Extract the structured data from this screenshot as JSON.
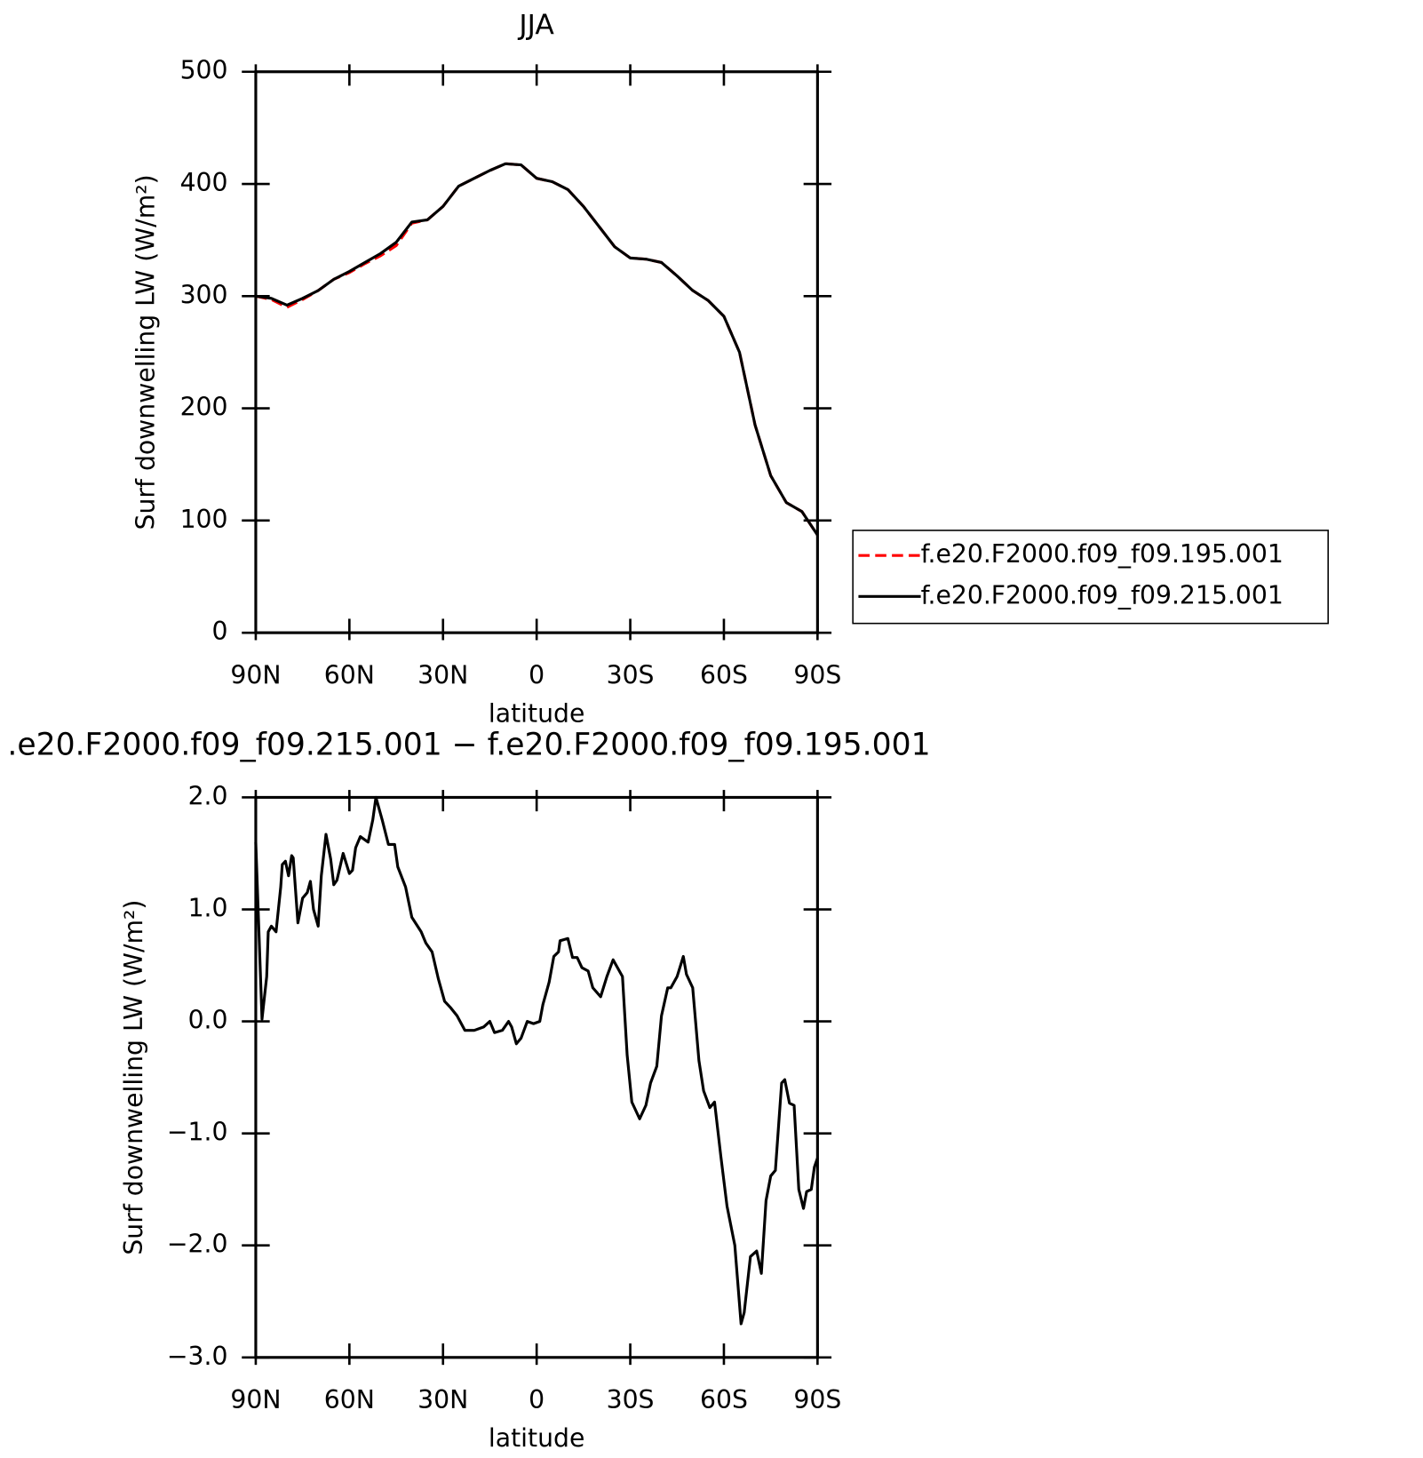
{
  "chart_data": [
    {
      "type": "line",
      "title": "JJA",
      "xlabel": "latitude",
      "ylabel": "Surf downwelling LW (W/m²)",
      "x": [
        90,
        85,
        80,
        75,
        70,
        65,
        60,
        55,
        50,
        45,
        40,
        35,
        30,
        25,
        20,
        15,
        10,
        5,
        0,
        -5,
        -10,
        -15,
        -20,
        -25,
        -30,
        -35,
        -40,
        -45,
        -50,
        -55,
        -60,
        -65,
        -70,
        -75,
        -80,
        -85,
        -90
      ],
      "series": [
        {
          "name": "f.e20.F2000.f09_f09.195.001",
          "color": "#ff0000",
          "line_style": "dashed",
          "values": [
            300,
            297,
            290,
            297,
            305,
            315,
            321,
            329,
            336,
            345,
            365,
            368,
            380,
            398,
            405,
            412,
            418,
            417,
            405,
            402,
            395,
            380,
            362,
            344,
            334,
            333,
            330,
            318,
            305,
            296,
            282,
            250,
            185,
            140,
            116,
            108,
            87
          ]
        },
        {
          "name": "f.e20.F2000.f09_f09.215.001",
          "color": "#000000",
          "line_style": "solid",
          "values": [
            300,
            298,
            292,
            298,
            305,
            315,
            322,
            330,
            338,
            348,
            366,
            368,
            380,
            398,
            405,
            412,
            418,
            417,
            405,
            402,
            395,
            380,
            362,
            344,
            334,
            333,
            330,
            318,
            305,
            296,
            282,
            250,
            185,
            140,
            116,
            108,
            87
          ]
        }
      ],
      "xlim": [
        90,
        -90
      ],
      "xticks": [
        {
          "value": 90,
          "label": "90N"
        },
        {
          "value": 60,
          "label": "60N"
        },
        {
          "value": 30,
          "label": "30N"
        },
        0,
        {
          "value": -30,
          "label": "30S"
        },
        {
          "value": -60,
          "label": "60S"
        },
        {
          "value": -90,
          "label": "90S"
        }
      ],
      "ylim": [
        0,
        500
      ],
      "yticks": [
        0,
        100,
        200,
        300,
        400,
        500
      ],
      "legend": "right"
    },
    {
      "type": "line",
      "title": ".e20.F2000.f09_f09.215.001 − f.e20.F2000.f09_f09.195.001",
      "xlabel": "latitude",
      "ylabel": "Surf downwelling LW (W/m²)",
      "x": [
        90,
        88,
        86.5,
        86,
        85,
        83.5,
        82,
        81.5,
        80.5,
        79.5,
        78.5,
        78,
        76.5,
        75,
        73.5,
        72.5,
        71.5,
        70,
        69,
        67.5,
        66,
        65,
        64,
        62,
        60,
        59,
        58,
        56.5,
        54,
        52.5,
        51.5,
        49.5,
        47.5,
        45.5,
        44.5,
        42,
        40,
        37,
        35.5,
        33.5,
        31.5,
        29.5,
        27.5,
        25.5,
        23,
        20,
        17,
        15,
        13.5,
        11,
        9,
        8,
        6.5,
        5,
        3,
        1,
        -1,
        -2,
        -4,
        -5.5,
        -7,
        -7.5,
        -10,
        -11.5,
        -13,
        -14.5,
        -16.5,
        -18,
        -20.5,
        -22.5,
        -24.5,
        -27.5,
        -29,
        -30.5,
        -33,
        -35,
        -36.5,
        -38.5,
        -40,
        -42,
        -43,
        -45,
        -47,
        -48,
        -50,
        -52,
        -53.5,
        -55.5,
        -57,
        -59,
        -61,
        -63.5,
        -65.5,
        -66.5,
        -68.5,
        -70.5,
        -72,
        -73.5,
        -75,
        -76.5,
        -78.5,
        -79.5,
        -81,
        -82.5,
        -84,
        -85.5,
        -86.5,
        -88,
        -89,
        -90
      ],
      "values": [
        1.6,
        0.02,
        0.4,
        0.8,
        0.85,
        0.8,
        1.2,
        1.4,
        1.43,
        1.3,
        1.48,
        1.46,
        0.88,
        1.1,
        1.15,
        1.25,
        1.0,
        0.85,
        1.3,
        1.67,
        1.45,
        1.22,
        1.26,
        1.5,
        1.32,
        1.35,
        1.55,
        1.65,
        1.6,
        1.8,
        2.0,
        1.8,
        1.58,
        1.58,
        1.38,
        1.2,
        0.93,
        0.8,
        0.7,
        0.62,
        0.38,
        0.18,
        0.12,
        0.05,
        -0.08,
        -0.08,
        -0.05,
        0.0,
        -0.1,
        -0.08,
        0.0,
        -0.05,
        -0.2,
        -0.15,
        0.0,
        -0.02,
        0.0,
        0.15,
        0.35,
        0.58,
        0.62,
        0.72,
        0.74,
        0.57,
        0.57,
        0.48,
        0.45,
        0.3,
        0.22,
        0.4,
        0.55,
        0.4,
        -0.3,
        -0.72,
        -0.87,
        -0.75,
        -0.55,
        -0.4,
        0.05,
        0.3,
        0.3,
        0.4,
        0.58,
        0.42,
        0.3,
        -0.35,
        -0.62,
        -0.77,
        -0.72,
        -1.2,
        -1.65,
        -2.0,
        -2.7,
        -2.6,
        -2.1,
        -2.05,
        -2.25,
        -1.6,
        -1.38,
        -1.33,
        -0.55,
        -0.52,
        -0.73,
        -0.75,
        -1.5,
        -1.67,
        -1.52,
        -1.5,
        -1.3,
        -1.22
      ],
      "color": "#000000",
      "xlim": [
        90,
        -90
      ],
      "xticks": [
        {
          "value": 90,
          "label": "90N"
        },
        {
          "value": 60,
          "label": "60N"
        },
        {
          "value": 30,
          "label": "30N"
        },
        0,
        {
          "value": -30,
          "label": "30S"
        },
        {
          "value": -60,
          "label": "60S"
        },
        {
          "value": -90,
          "label": "90S"
        }
      ],
      "ylim": [
        -3,
        2
      ],
      "yticks": [
        {
          "value": -3,
          "label": "−3.0"
        },
        {
          "value": -2,
          "label": "−2.0"
        },
        {
          "value": -1,
          "label": "−1.0"
        },
        {
          "value": 0,
          "label": "0.0"
        },
        {
          "value": 1,
          "label": "1.0"
        },
        {
          "value": 2,
          "label": "2.0"
        }
      ]
    }
  ]
}
